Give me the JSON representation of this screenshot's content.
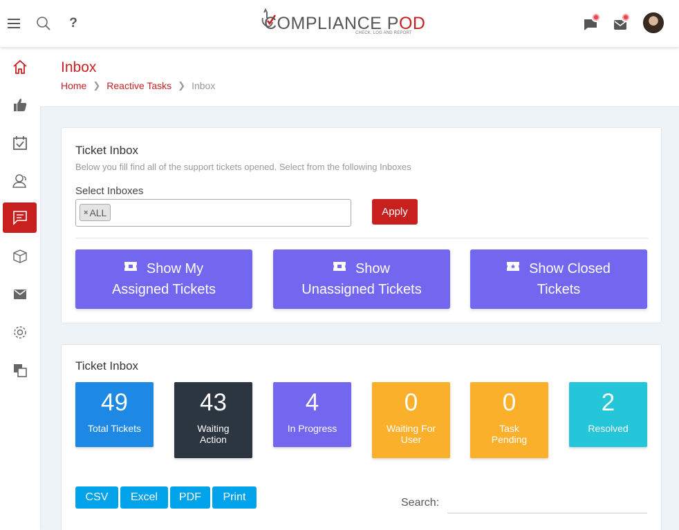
{
  "header": {
    "help_label": "?",
    "logo": {
      "text_main": "COMPLIANCE P",
      "text_pod": "OD",
      "tagline": "CHECK, LOG AND REPORT"
    }
  },
  "sidebar": {
    "items": [
      {
        "icon": "home-icon"
      },
      {
        "icon": "thumbs-up-icon"
      },
      {
        "icon": "calendar-check-icon"
      },
      {
        "icon": "users-icon"
      },
      {
        "icon": "chat-icon",
        "active": true
      },
      {
        "icon": "box-icon"
      },
      {
        "icon": "mail-icon"
      },
      {
        "icon": "gear-icon"
      },
      {
        "icon": "copy-icon"
      }
    ]
  },
  "page": {
    "title": "Inbox",
    "breadcrumb": {
      "home": "Home",
      "section": "Reactive Tasks",
      "current": "Inbox"
    }
  },
  "inbox_card": {
    "title": "Ticket Inbox",
    "subtitle": "Below you fill find all of the support tickets opened. Select from the following Inboxes",
    "select_label": "Select Inboxes",
    "selected_tag": "ALL",
    "tag_remove": "×",
    "apply_label": "Apply",
    "buttons": {
      "my_assigned": {
        "line1": "Show My",
        "line2": "Assigned Tickets"
      },
      "unassigned": {
        "line1": "Show",
        "line2": "Unassigned Tickets"
      },
      "closed": {
        "line1": "Show Closed",
        "line2": "Tickets"
      }
    }
  },
  "stats_card": {
    "title": "Ticket Inbox",
    "tiles": [
      {
        "value": "49",
        "label": "Total Tickets",
        "color": "#1e88e5"
      },
      {
        "value": "43",
        "label": "Waiting Action",
        "color": "#2b3640"
      },
      {
        "value": "4",
        "label": "In Progress",
        "color": "#7367f0"
      },
      {
        "value": "0",
        "label": "Waiting For User",
        "color": "#fbb02c"
      },
      {
        "value": "0",
        "label": "Task Pending",
        "color": "#fbb02c"
      },
      {
        "value": "2",
        "label": "Resolved",
        "color": "#26c6da"
      }
    ],
    "export": {
      "csv": "CSV",
      "excel": "Excel",
      "pdf": "PDF",
      "print": "Print"
    },
    "search_label": "Search:",
    "search_value": ""
  },
  "colors": {
    "brand_red": "#c8201e",
    "purple": "#7367f0",
    "blue": "#00a3ea"
  }
}
